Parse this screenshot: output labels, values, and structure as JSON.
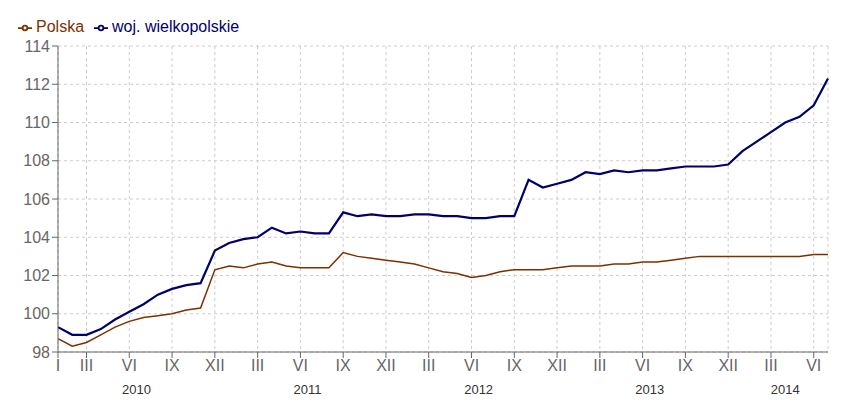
{
  "chart_data": {
    "type": "line",
    "categories": [
      "I",
      null,
      "III",
      null,
      null,
      "VI",
      null,
      null,
      "IX",
      null,
      null,
      "XII",
      null,
      null,
      "III",
      null,
      null,
      "VI",
      null,
      null,
      "IX",
      null,
      null,
      "XII",
      null,
      null,
      "III",
      null,
      null,
      "VI",
      null,
      null,
      "IX",
      null,
      null,
      "XII",
      null,
      null,
      "III",
      null,
      null,
      "VI",
      null,
      null,
      "IX",
      null,
      null,
      "XII",
      null,
      null,
      "III",
      null,
      null,
      "VI",
      null
    ],
    "series": [
      {
        "name": "Polska",
        "color": "#7B3000",
        "values": [
          98.7,
          98.3,
          98.5,
          98.9,
          99.3,
          99.6,
          99.8,
          99.9,
          100.0,
          100.2,
          100.3,
          102.3,
          102.5,
          102.4,
          102.6,
          102.7,
          102.5,
          102.4,
          102.4,
          102.4,
          103.2,
          103.0,
          102.9,
          102.8,
          102.7,
          102.6,
          102.4,
          102.2,
          102.1,
          101.9,
          102.0,
          102.2,
          102.3,
          102.3,
          102.3,
          102.4,
          102.5,
          102.5,
          102.5,
          102.6,
          102.6,
          102.7,
          102.7,
          102.8,
          102.9,
          103.0,
          103.0,
          103.0,
          103.0,
          103.0,
          103.0,
          103.0,
          103.0,
          103.1,
          103.1
        ]
      },
      {
        "name": "woj. wielkopolskie",
        "color": "#00006B",
        "values": [
          99.3,
          98.9,
          98.9,
          99.2,
          99.7,
          100.1,
          100.5,
          101.0,
          101.3,
          101.5,
          101.6,
          103.3,
          103.7,
          103.9,
          104.0,
          104.5,
          104.2,
          104.3,
          104.2,
          104.2,
          105.3,
          105.1,
          105.2,
          105.1,
          105.1,
          105.2,
          105.2,
          105.1,
          105.1,
          105.0,
          105.0,
          105.1,
          105.1,
          107.0,
          106.6,
          106.8,
          107.0,
          107.4,
          107.3,
          107.5,
          107.4,
          107.5,
          107.5,
          107.6,
          107.7,
          107.7,
          107.7,
          107.8,
          108.5,
          109.0,
          109.5,
          110.0,
          110.3,
          110.9,
          112.3
        ]
      }
    ],
    "annotations": [
      "2010",
      "2011",
      "2012",
      "2013",
      "2014"
    ],
    "ylim": [
      98,
      114
    ],
    "yticks": [
      98,
      100,
      102,
      104,
      106,
      108,
      110,
      112,
      114
    ],
    "grid": true,
    "legend": "upper left"
  }
}
